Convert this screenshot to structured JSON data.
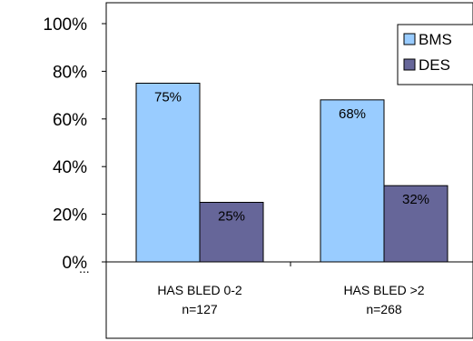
{
  "chart_data": {
    "type": "bar",
    "categories": [
      "HAS BLED 0-2",
      "HAS BLED >2"
    ],
    "category_sublabels": [
      "n=127",
      "n=268"
    ],
    "series": [
      {
        "name": "BMS",
        "values": [
          75,
          68
        ],
        "labels": [
          "75%",
          "68%"
        ],
        "color": "#99ccff"
      },
      {
        "name": "DES",
        "values": [
          25,
          32
        ],
        "labels": [
          "25%",
          "32%"
        ],
        "color": "#666699"
      }
    ],
    "ylim": [
      0,
      100
    ],
    "yticks": [
      0,
      20,
      40,
      60,
      80,
      100
    ],
    "ytick_labels": [
      "0%",
      "20%",
      "40%",
      "60%",
      "80%",
      "100%"
    ],
    "grid": false,
    "legend_position": "top-right",
    "extra_mark": "..."
  }
}
